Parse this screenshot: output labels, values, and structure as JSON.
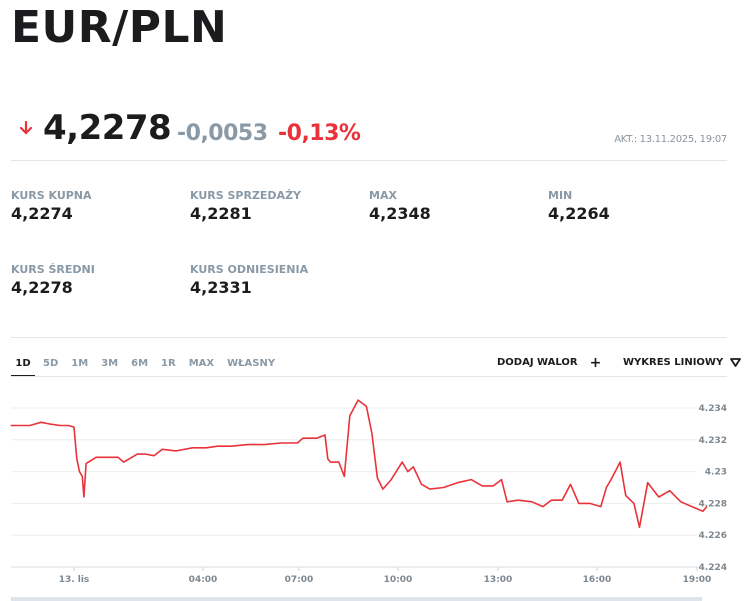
{
  "header": {
    "title": "EUR/PLN"
  },
  "quote": {
    "direction_icon": "arrow-down-icon",
    "price": "4,2278",
    "change": "-0,0053",
    "change_percent": "-0,13%",
    "updated": "AKT.: 13.11.2025, 19:07",
    "colors": {
      "down": "#e8333a",
      "change_neutral": "#8a99a6"
    }
  },
  "stats": [
    {
      "label": "KURS KUPNA",
      "value": "4,2274"
    },
    {
      "label": "KURS SPRZEDAŻY",
      "value": "4,2281"
    },
    {
      "label": "MAX",
      "value": "4,2348"
    },
    {
      "label": "MIN",
      "value": "4,2264"
    },
    {
      "label": "KURS ŚREDNI",
      "value": "4,2278"
    },
    {
      "label": "KURS ODNIESIENIA",
      "value": "4,2331"
    }
  ],
  "toolbar": {
    "periods": [
      "1D",
      "5D",
      "1M",
      "3M",
      "6M",
      "1R",
      "MAX",
      "WŁASNY"
    ],
    "active_period": "1D",
    "add_asset_label": "DODAJ WALOR",
    "add_asset_icon": "+",
    "chart_type_label": "WYKRES LINIOWY",
    "chart_type_icon": "triangle-down-icon"
  },
  "chart_data": {
    "type": "line",
    "title": "EUR/PLN",
    "xlabel": "",
    "ylabel": "",
    "series_color": "#e8333a",
    "ylim": [
      4.224,
      4.2352
    ],
    "yticks": [
      "4.234",
      "4.232",
      "4.23",
      "4.228",
      "4.226",
      "4.224"
    ],
    "xticks": [
      "13. lis",
      "04:00",
      "07:00",
      "10:00",
      "13:00",
      "16:00",
      "19:00"
    ],
    "grid": true,
    "legend": "none",
    "series": [
      {
        "name": "EUR/PLN",
        "x": [
          "22:05",
          "22:40",
          "23:00",
          "23:15",
          "23:35",
          "23:50",
          "00:00",
          "00:05",
          "00:10",
          "00:15",
          "00:18",
          "00:22",
          "00:40",
          "01:20",
          "01:30",
          "01:40",
          "01:55",
          "02:10",
          "02:25",
          "02:40",
          "03:05",
          "03:35",
          "04:00",
          "04:20",
          "04:45",
          "05:15",
          "05:45",
          "06:15",
          "06:45",
          "06:55",
          "07:20",
          "07:35",
          "07:40",
          "07:45",
          "08:00",
          "08:10",
          "08:20",
          "08:35",
          "08:50",
          "09:00",
          "09:10",
          "09:20",
          "09:35",
          "09:55",
          "10:05",
          "10:15",
          "10:30",
          "10:45",
          "11:10",
          "11:35",
          "12:00",
          "12:20",
          "12:40",
          "12:55",
          "13:05",
          "13:25",
          "13:50",
          "14:10",
          "14:25",
          "14:45",
          "15:00",
          "15:15",
          "15:35",
          "15:55",
          "16:05",
          "16:15",
          "16:30",
          "16:40",
          "16:55",
          "17:05",
          "17:20",
          "17:40",
          "18:00",
          "18:20",
          "18:40",
          "19:00",
          "19:07"
        ],
        "values": [
          4.2329,
          4.2329,
          4.2331,
          4.233,
          4.2329,
          4.2329,
          4.2328,
          4.2308,
          4.23,
          4.2297,
          4.2284,
          4.2305,
          4.2309,
          4.2309,
          4.2306,
          4.2308,
          4.2311,
          4.2311,
          4.231,
          4.2314,
          4.2313,
          4.2315,
          4.2315,
          4.2316,
          4.2316,
          4.2317,
          4.2317,
          4.2318,
          4.2318,
          4.2321,
          4.2321,
          4.2323,
          4.2308,
          4.2306,
          4.2306,
          4.2297,
          4.2335,
          4.2345,
          4.2341,
          4.2324,
          4.2296,
          4.2289,
          4.2295,
          4.2306,
          4.23,
          4.2303,
          4.2292,
          4.2289,
          4.229,
          4.2293,
          4.2295,
          4.2291,
          4.2291,
          4.2295,
          4.2281,
          4.2282,
          4.2281,
          4.2278,
          4.2282,
          4.2282,
          4.2292,
          4.228,
          4.228,
          4.2278,
          4.229,
          4.2296,
          4.2306,
          4.2285,
          4.228,
          4.2265,
          4.2293,
          4.2284,
          4.2288,
          4.2281,
          4.2278,
          4.2275,
          4.2278
        ]
      }
    ]
  }
}
